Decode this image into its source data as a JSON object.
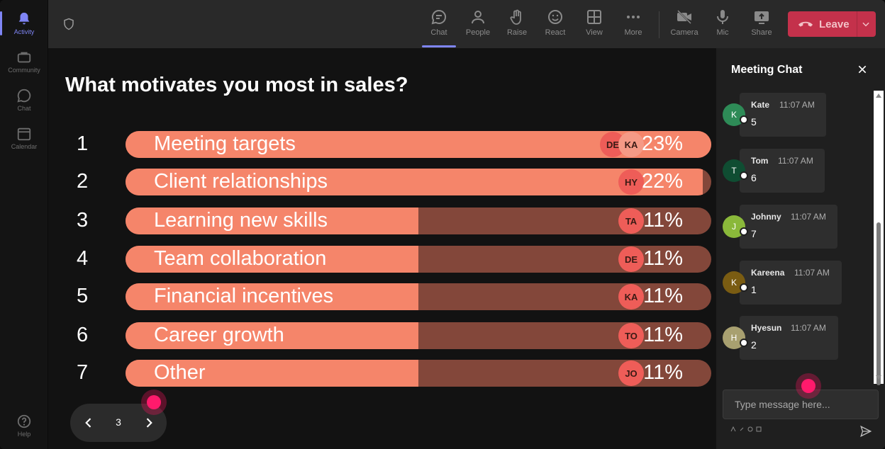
{
  "rail": {
    "items": [
      {
        "label": "Activity",
        "icon": "bell-icon",
        "active": true
      },
      {
        "label": "Community",
        "icon": "community-icon",
        "active": false
      },
      {
        "label": "Chat",
        "icon": "chat-icon",
        "active": false
      },
      {
        "label": "Calendar",
        "icon": "calendar-icon",
        "active": false
      }
    ],
    "help_label": "Help"
  },
  "toolbar": {
    "chat": "Chat",
    "people": "People",
    "raise": "Raise",
    "react": "React",
    "view": "View",
    "more": "More",
    "camera": "Camera",
    "mic": "Mic",
    "share": "Share",
    "leave": "Leave"
  },
  "poll": {
    "question": "What motivates you most in sales?",
    "options": [
      {
        "rank": "1",
        "label": "Meeting targets",
        "percent_text": "23%",
        "fill": 1.0,
        "avatars": [
          "DE",
          "KA"
        ]
      },
      {
        "rank": "2",
        "label": "Client relationships",
        "percent_text": "22%",
        "fill": 0.985,
        "avatars": [
          "HY"
        ]
      },
      {
        "rank": "3",
        "label": "Learning new skills",
        "percent_text": "11%",
        "fill": 0.5,
        "avatars": [
          "TA"
        ]
      },
      {
        "rank": "4",
        "label": "Team collaboration",
        "percent_text": "11%",
        "fill": 0.5,
        "avatars": [
          "DE"
        ]
      },
      {
        "rank": "5",
        "label": "Financial incentives",
        "percent_text": "11%",
        "fill": 0.5,
        "avatars": [
          "KA"
        ]
      },
      {
        "rank": "6",
        "label": "Career growth",
        "percent_text": "11%",
        "fill": 0.5,
        "avatars": [
          "TO"
        ]
      },
      {
        "rank": "7",
        "label": "Other",
        "percent_text": "11%",
        "fill": 0.5,
        "avatars": [
          "JO"
        ]
      }
    ],
    "page": "3"
  },
  "chat": {
    "title": "Meeting Chat",
    "messages": [
      {
        "initial": "K",
        "name": "Kate",
        "time": "11:07 AM",
        "text": "5",
        "color": "#2e8b57"
      },
      {
        "initial": "T",
        "name": "Tom",
        "time": "11:07 AM",
        "text": "6",
        "color": "#0f4d32"
      },
      {
        "initial": "J",
        "name": "Johnny",
        "time": "11:07 AM",
        "text": "7",
        "color": "#8ab83a"
      },
      {
        "initial": "K",
        "name": "Kareena",
        "time": "11:07 AM",
        "text": "1",
        "color": "#7a5c12"
      },
      {
        "initial": "H",
        "name": "Hyesun",
        "time": "11:07 AM",
        "text": "2",
        "color": "#a8a070"
      }
    ],
    "compose_placeholder": "Type message here..."
  }
}
